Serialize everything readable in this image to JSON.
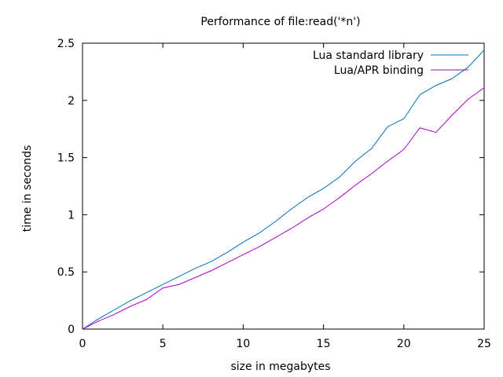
{
  "chart_data": {
    "type": "line",
    "title": "Performance of file:read('*n')",
    "xlabel": "size in megabytes",
    "ylabel": "time in seconds",
    "xlim": [
      0,
      25
    ],
    "ylim": [
      0,
      2.5
    ],
    "xticks": [
      0,
      5,
      10,
      15,
      20,
      25
    ],
    "yticks": [
      0,
      0.5,
      1,
      1.5,
      2,
      2.5
    ],
    "grid": false,
    "legend_position": "top-right",
    "x": [
      0,
      1,
      2,
      3,
      4,
      5,
      6,
      7,
      8,
      9,
      10,
      11,
      12,
      13,
      14,
      15,
      16,
      17,
      18,
      19,
      20,
      21,
      22,
      23,
      24,
      25
    ],
    "series": [
      {
        "name": "Lua standard library",
        "color": "#0072bd",
        "values": [
          0,
          0.09,
          0.17,
          0.25,
          0.32,
          0.39,
          0.46,
          0.53,
          0.59,
          0.67,
          0.76,
          0.84,
          0.94,
          1.05,
          1.15,
          1.23,
          1.33,
          1.47,
          1.58,
          1.77,
          1.84,
          2.05,
          2.13,
          2.19,
          2.29,
          2.44
        ]
      },
      {
        "name": "Lua/APR binding",
        "color": "#b000d0",
        "values": [
          0,
          0.07,
          0.13,
          0.2,
          0.26,
          0.36,
          0.39,
          0.45,
          0.51,
          0.58,
          0.65,
          0.72,
          0.8,
          0.88,
          0.97,
          1.05,
          1.15,
          1.26,
          1.36,
          1.47,
          1.57,
          1.76,
          1.72,
          1.87,
          2.01,
          2.11
        ]
      }
    ]
  }
}
